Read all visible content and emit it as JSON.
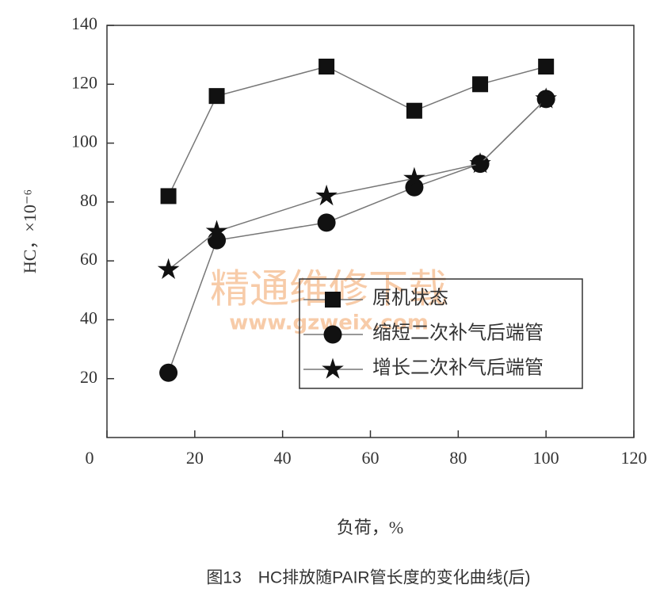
{
  "chart_data": {
    "type": "line",
    "ylabel": "HC，×10⁻⁶",
    "xlabel": "负荷，%",
    "caption": "图13　HC排放随PAIR管长度的变化曲线(后)",
    "watermark": [
      "精通维修下载",
      "www.gzweix.com"
    ],
    "x": [
      14,
      25,
      50,
      70,
      85,
      100
    ],
    "series": [
      {
        "name": "原机状态",
        "color": "#111111",
        "marker": "square",
        "values": [
          82,
          116,
          126,
          111,
          120,
          126
        ]
      },
      {
        "name": "缩短二次补气后端管",
        "color": "#111111",
        "marker": "circle",
        "values": [
          22,
          67,
          73,
          85,
          93,
          115
        ]
      },
      {
        "name": "增长二次补气后端管",
        "color": "#111111",
        "marker": "star",
        "values": [
          57,
          70,
          82,
          88,
          93,
          115
        ]
      }
    ],
    "xlim": [
      0,
      120
    ],
    "xticks": [
      0,
      20,
      40,
      60,
      80,
      100,
      120
    ],
    "ylim": [
      0,
      140
    ],
    "yticks": [
      20,
      40,
      60,
      80,
      100,
      120,
      140
    ],
    "legend": "lower right"
  }
}
